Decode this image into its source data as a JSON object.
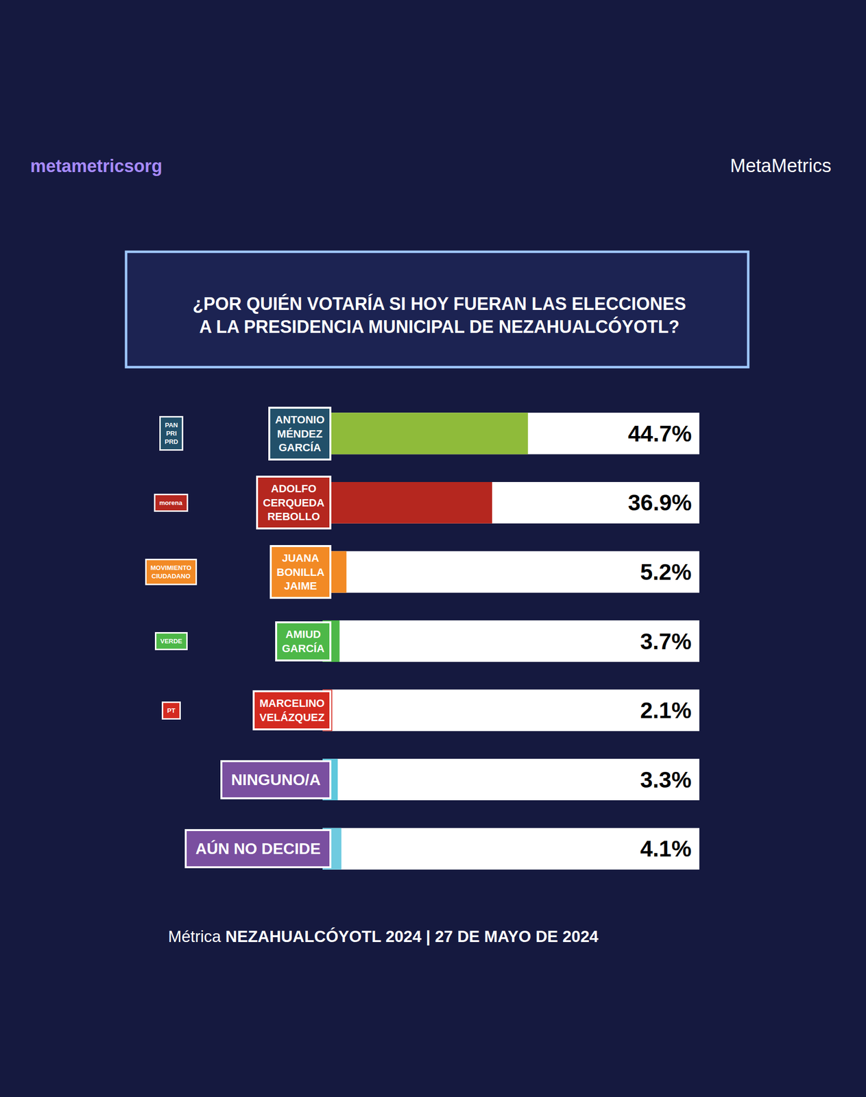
{
  "chart_data": {
    "type": "bar",
    "orientation": "horizontal",
    "title": "¿POR QUIÉN VOTARÍA SI HOY FUERAN LAS ELECCIONES A LA PRESIDENCIA MUNICIPAL DE NEZAHUALCÓYOTL?",
    "categories": [
      "ANTONIO MÉNDEZ GARCÍA",
      "ADOLFO CERQUEDA REBOLLO",
      "JUANA BONILLA JAIME",
      "AMIUD GARCÍA",
      "MARCELINO VELÁZQUEZ",
      "NINGUNO/A",
      "AÚN NO DECIDE"
    ],
    "parties": [
      [
        "PAN",
        "PRI",
        "PRD"
      ],
      [
        "morena"
      ],
      [
        "MOVIMIENTO CIUDADANO"
      ],
      [
        "VERDE"
      ],
      [
        "PT"
      ],
      null,
      null
    ],
    "values": [
      44.7,
      36.9,
      5.2,
      3.7,
      2.1,
      3.3,
      4.1
    ],
    "value_labels": [
      "44.7%",
      "36.9%",
      "5.2%",
      "3.7%",
      "2.1%",
      "3.3%",
      "4.1%"
    ],
    "colors": [
      "#8fbb3a",
      "#b5271f",
      "#f28a25",
      "#4db848",
      "#d42a20",
      "#5ec8dc",
      "#6fcbe0"
    ],
    "xlim": [
      0,
      82
    ],
    "data_labels": true,
    "tick_labels": false,
    "grid": false
  },
  "handle": "metametricsorg",
  "brand": "MetaMetrics",
  "footer": {
    "prefix": "Métrica",
    "text": "NEZAHUALCÓYOTL 2024 | 27 DE MAYO DE 2024"
  }
}
